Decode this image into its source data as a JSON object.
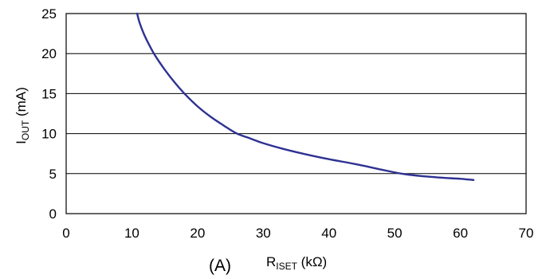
{
  "chart_data": {
    "type": "line",
    "panel_label": "(A)",
    "xlabel": {
      "main": "R",
      "sub": "ISET",
      "rest": " (kΩ)"
    },
    "ylabel": {
      "main": "I",
      "sub": "OUT",
      "rest": " (mA)"
    },
    "xlim": [
      0,
      70
    ],
    "ylim": [
      0,
      25
    ],
    "xticks": [
      0,
      10,
      20,
      30,
      40,
      50,
      60,
      70
    ],
    "yticks": [
      0,
      5,
      10,
      15,
      20,
      25
    ],
    "grid": {
      "horizontal": true,
      "vertical": false
    },
    "series": [
      {
        "color": "#2e3192",
        "x": [
          10.8,
          11.2,
          11.8,
          12.5,
          13.5,
          15,
          16.5,
          18,
          20,
          22,
          24,
          26,
          28,
          30,
          33,
          36,
          40,
          44,
          48,
          51,
          54,
          57,
          60,
          62
        ],
        "y": [
          25,
          23.8,
          22.5,
          21.3,
          19.8,
          18.0,
          16.4,
          15.0,
          13.4,
          12.1,
          11.0,
          10.0,
          9.4,
          8.8,
          8.1,
          7.5,
          6.8,
          6.2,
          5.5,
          5.0,
          4.7,
          4.5,
          4.35,
          4.2
        ]
      }
    ]
  }
}
